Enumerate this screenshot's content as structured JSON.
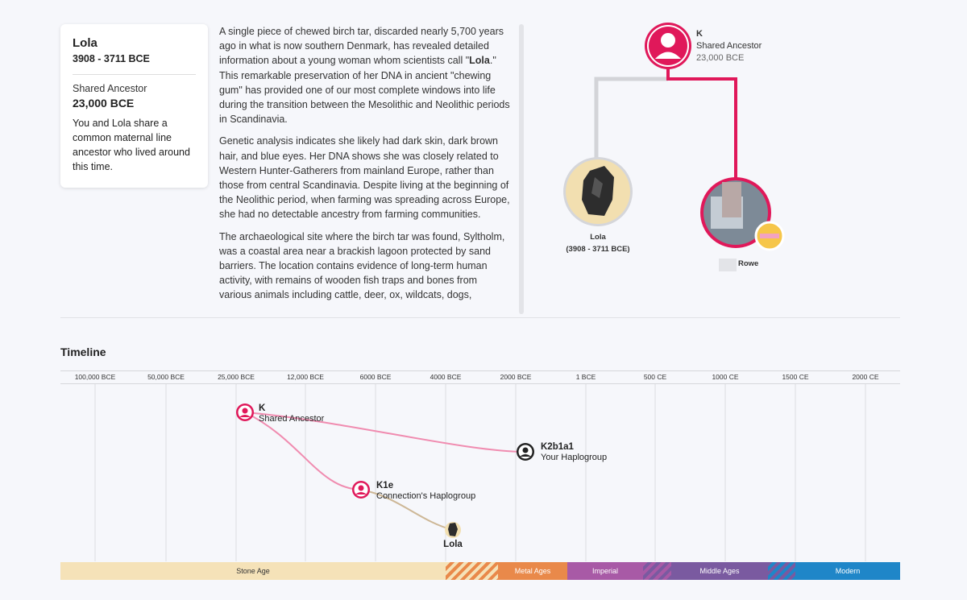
{
  "card": {
    "name": "Lola",
    "dates": "3908 - 3711 BCE",
    "shared_label": "Shared Ancestor",
    "shared_date": "23,000 BCE",
    "description": "You and Lola share a common maternal line ancestor who lived around this time."
  },
  "article": {
    "p1_before": "A single piece of chewed birch tar, discarded nearly 5,700 years ago in what is now southern Denmark, has revealed detailed information about a young woman whom scientists call \"",
    "p1_bold": "Lola",
    "p1_after": ".\" This remarkable preservation of her DNA in ancient \"chewing gum\" has provided one of our most complete windows into life during the transition between the Mesolithic and Neolithic periods in Scandinavia.",
    "p2": "Genetic analysis indicates she likely had dark skin, dark brown hair, and blue eyes. Her DNA shows she was closely related to Western Hunter-Gatherers from mainland Europe, rather than those from central Scandinavia. Despite living at the beginning of the Neolithic period, when farming was spreading across Europe, she had no detectable ancestry from farming communities.",
    "p3": "The archaeological site where the birch tar was found, Syltholm, was a coastal area near a brackish lagoon protected by sand barriers. The location contains evidence of long-term human activity, with remains of wooden fish traps and bones from various animals including cattle, deer, ox, wildcats, dogs,"
  },
  "tree": {
    "ancestor_name": "K",
    "ancestor_label": "Shared Ancestor",
    "ancestor_date": "23,000 BCE",
    "lola_name": "Lola",
    "lola_dates": "(3908 - 3711 BCE)",
    "user_name": "Rowe"
  },
  "timeline": {
    "title": "Timeline",
    "ticks": [
      "100,000 BCE",
      "50,000 BCE",
      "25,000 BCE",
      "12,000 BCE",
      "6000 BCE",
      "4000 BCE",
      "2000 BCE",
      "1 BCE",
      "500 CE",
      "1000 CE",
      "1500 CE",
      "2000 CE"
    ],
    "nodes": {
      "k_name": "K",
      "k_label": "Shared Ancestor",
      "user_hap": "K2b1a1",
      "user_label": "Your Haplogroup",
      "conn_hap": "K1e",
      "conn_label": "Connection's Haplogroup",
      "lola": "Lola"
    },
    "ages": [
      "Stone Age",
      "Metal Ages",
      "Imperial",
      "Middle Ages",
      "Modern"
    ]
  },
  "colors": {
    "accent": "#e0185a",
    "line_pink": "#f08cb0",
    "line_tan": "#cdb796",
    "stone": "#f5e2b8",
    "metal": "#e9894a",
    "imperial": "#a85aa6",
    "middle": "#7a5aa0",
    "modern": "#1f86c8"
  }
}
